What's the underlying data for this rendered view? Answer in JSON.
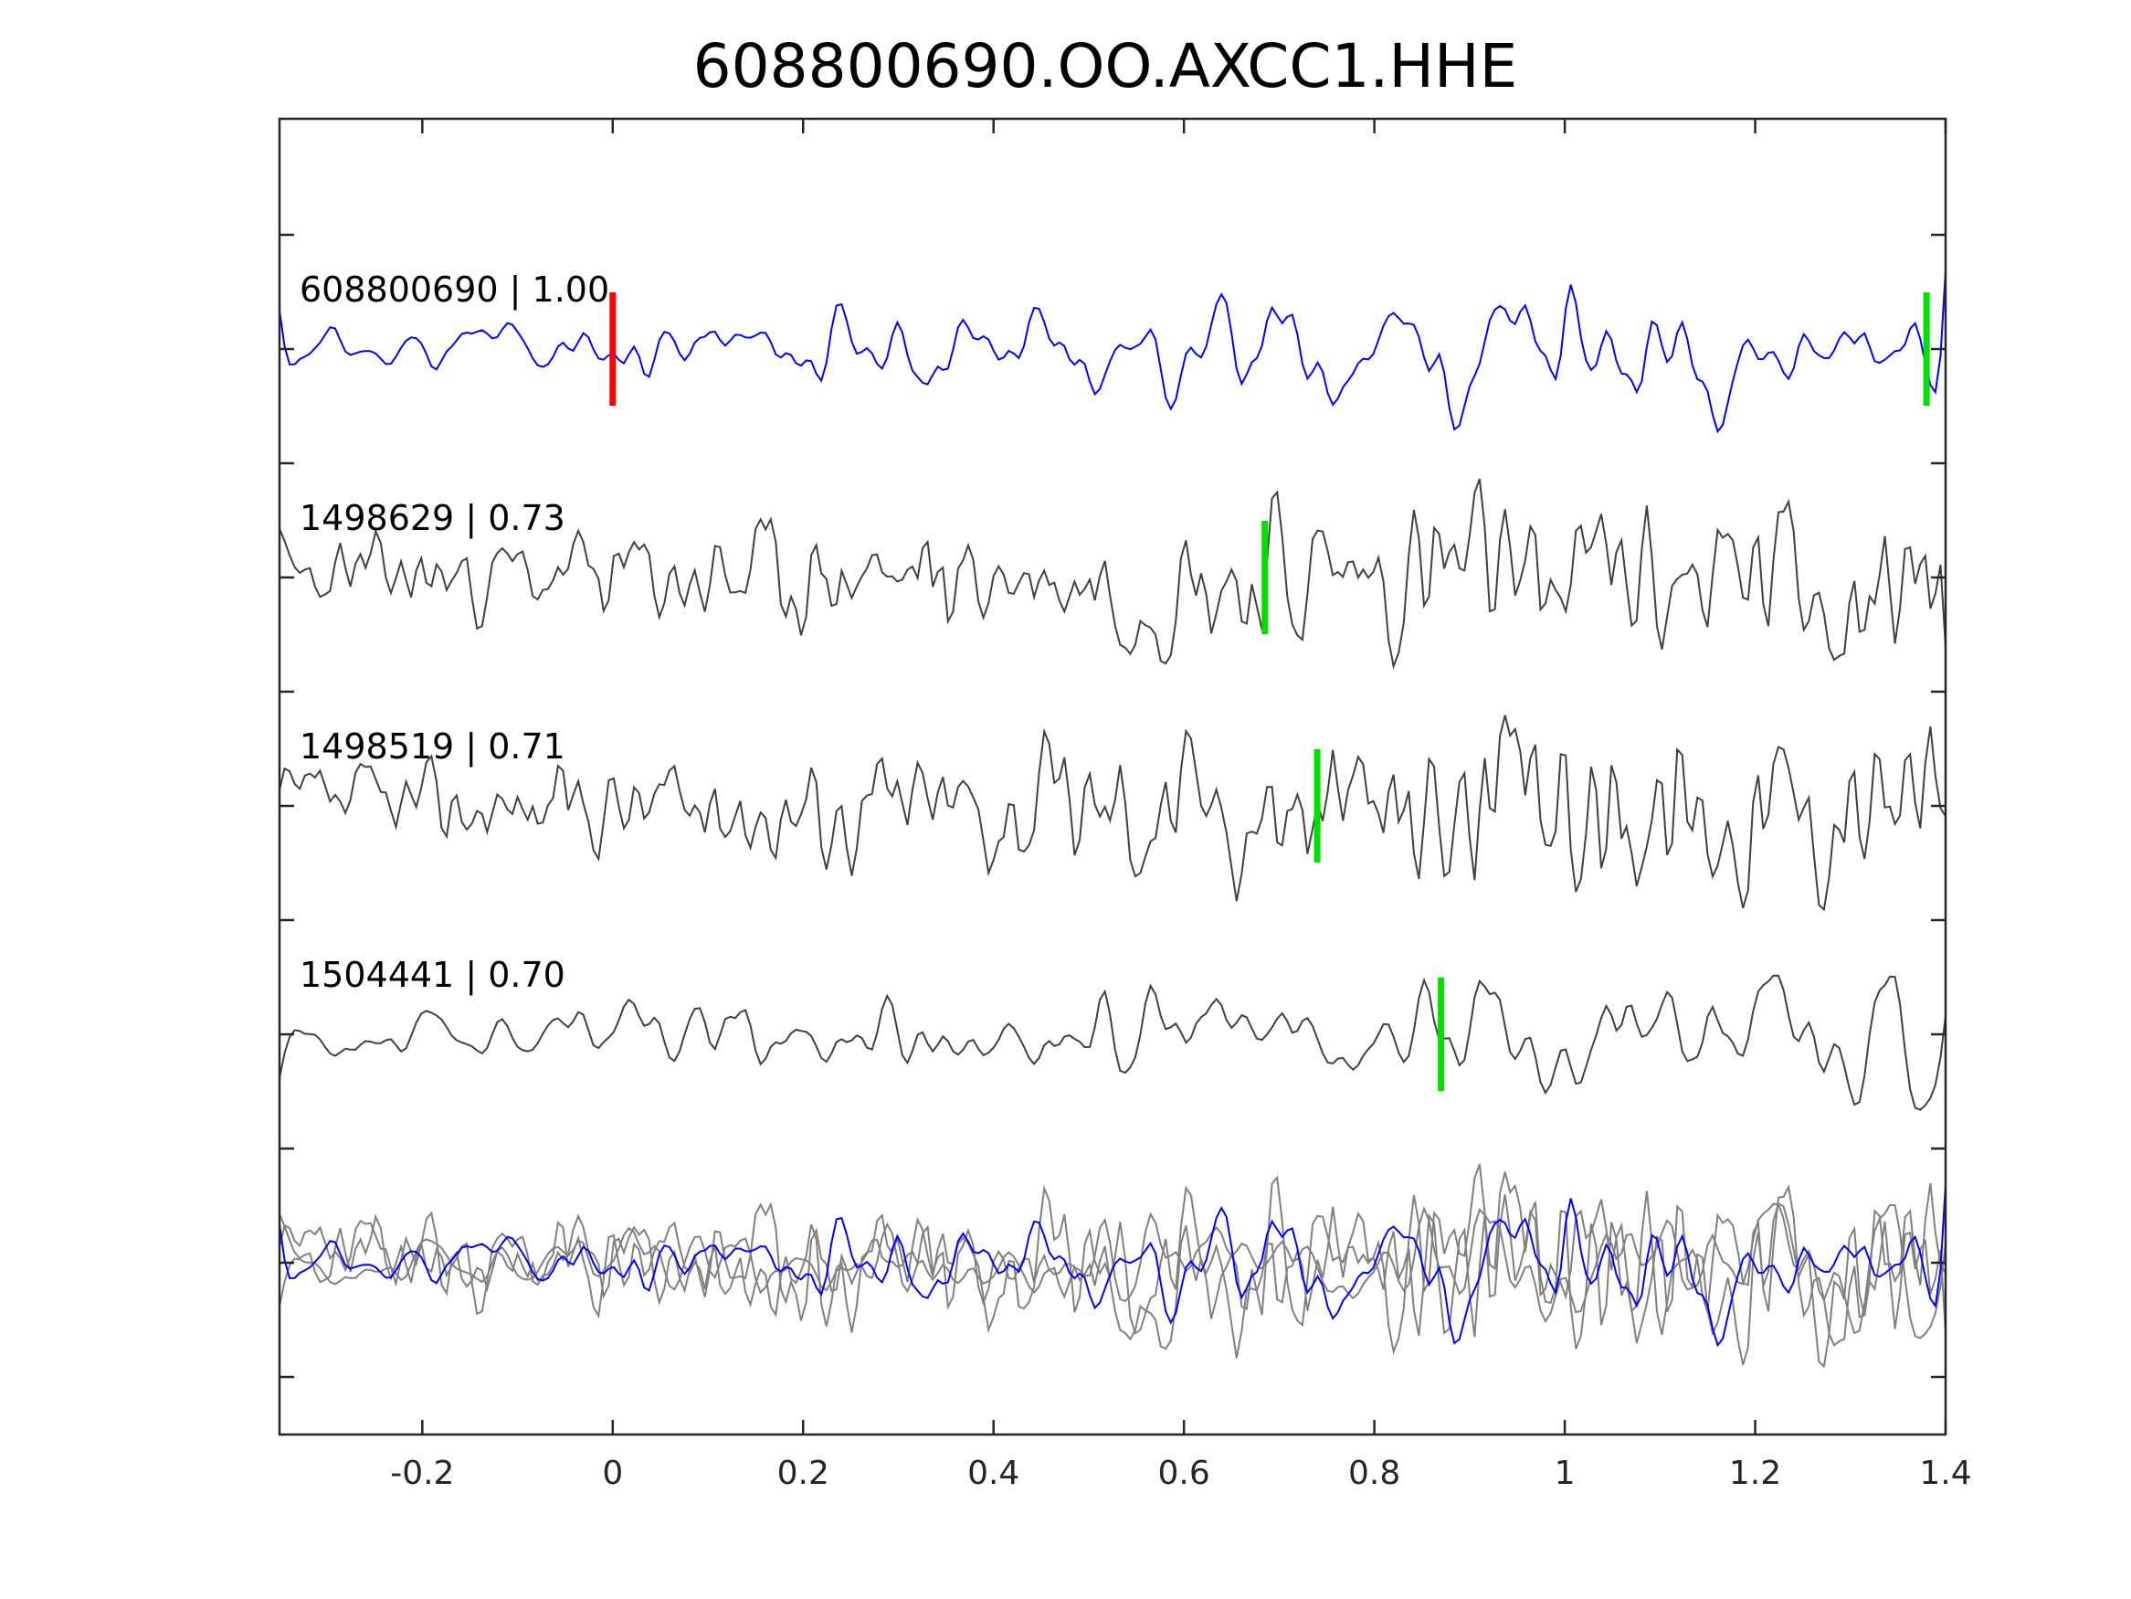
{
  "chart_data": {
    "type": "line",
    "title": "608800690.OO.AXCC1.HHE",
    "xlabel": "",
    "ylabel": "",
    "xlim": [
      -0.35,
      1.4
    ],
    "xticks": [
      -0.2,
      0,
      0.2,
      0.4,
      0.6,
      0.8,
      1,
      1.2,
      1.4
    ],
    "xtick_labels": [
      "-0.2",
      "0",
      "0.2",
      "0.4",
      "0.6",
      "0.8",
      "1",
      "1.2",
      "1.4"
    ],
    "grid": false,
    "colors": {
      "master": "#0000ff",
      "template": "#404040",
      "overlay": "#808080",
      "master_pick": "#ff0000",
      "picks": "#00dd00"
    },
    "series": [
      {
        "label": "608800690 | 1.00",
        "role": "master",
        "seed": 11,
        "smooth": 3,
        "amp": 0.75,
        "picks": [
          {
            "x": 0.0,
            "color": "red"
          },
          {
            "x": 1.38,
            "color": "green"
          }
        ]
      },
      {
        "label": "1498629 | 0.73",
        "role": "template",
        "seed": 23,
        "smooth": 1,
        "amp": 0.95,
        "picks": [
          {
            "x": 0.685,
            "color": "green"
          }
        ]
      },
      {
        "label": "1498519 | 0.71",
        "role": "template",
        "seed": 37,
        "smooth": 1,
        "amp": 0.95,
        "picks": [
          {
            "x": 0.74,
            "color": "green"
          }
        ]
      },
      {
        "label": "1504441 | 0.70",
        "role": "template",
        "seed": 53,
        "smooth": 3,
        "amp": 0.85,
        "picks": [
          {
            "x": 0.87,
            "color": "green"
          }
        ]
      }
    ],
    "overlay": {
      "description_panel": "stacked"
    }
  }
}
